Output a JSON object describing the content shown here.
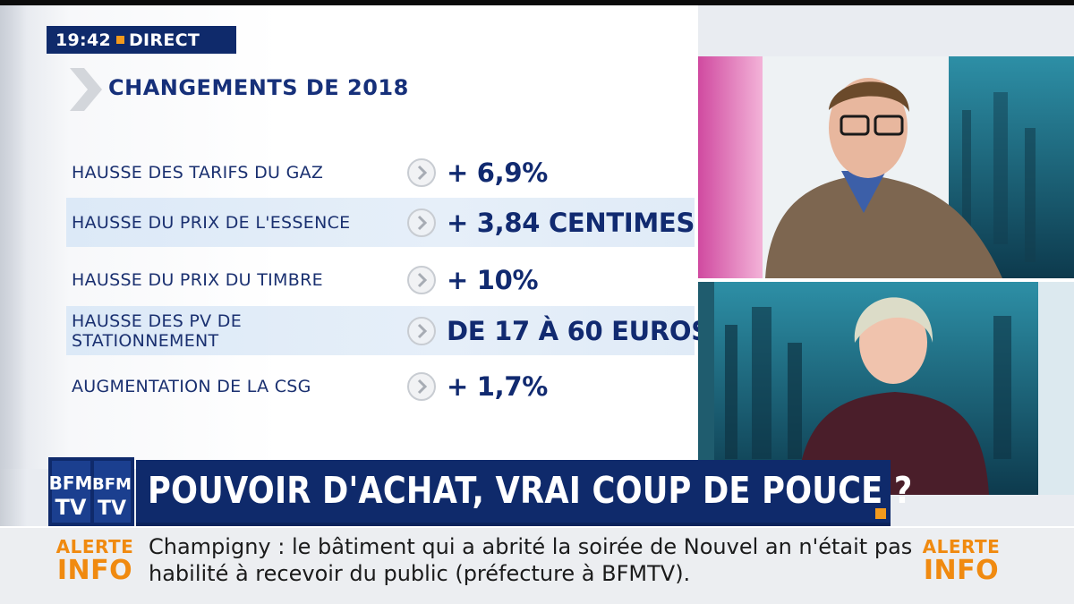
{
  "clock": {
    "time": "19:42",
    "live": "DIRECT"
  },
  "graphic": {
    "heading": "CHANGEMENTS DE 2018",
    "rows": [
      {
        "label": "HAUSSE DES TARIFS DU GAZ",
        "value": "+ 6,9%"
      },
      {
        "label": "HAUSSE DU PRIX DE L'ESSENCE",
        "value": "+ 3,84 CENTIMES"
      },
      {
        "label": "HAUSSE DU PRIX DU TIMBRE",
        "value": "+ 10%"
      },
      {
        "label": "HAUSSE DES PV DE STATIONNEMENT",
        "value": "DE 17 À 60 EUROS"
      },
      {
        "label": "AUGMENTATION DE LA CSG",
        "value": "+ 1,7%"
      }
    ]
  },
  "channel_logo": "BFM TV",
  "headline": "POUVOIR D'ACHAT, VRAI COUP DE POUCE ?",
  "ticker": {
    "alert_line1": "ALERTE",
    "alert_line2": "INFO",
    "text_line1": "Champigny : le bâtiment qui a abrité la soirée de Nouvel an n'était pas",
    "text_line2": "habilité à recevoir du public (préfecture à BFMTV)."
  },
  "colors": {
    "navy": "#0f2a6b",
    "orange": "#f39a1d",
    "text_blue": "#16307a"
  },
  "icons": [
    "chevron-right-icon",
    "arrow-circle-icon"
  ]
}
